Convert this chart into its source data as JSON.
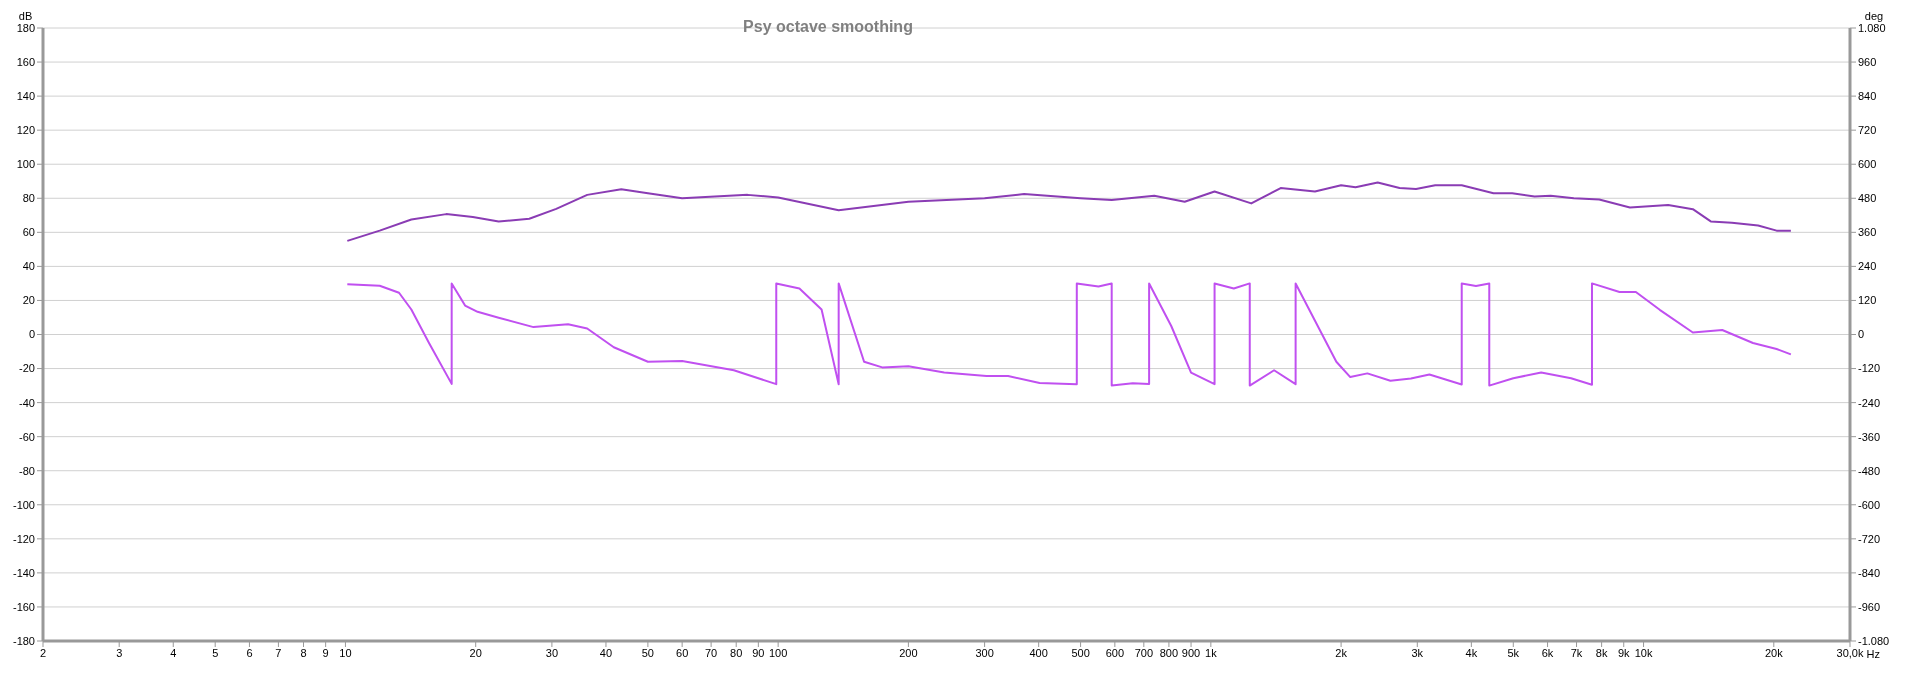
{
  "chart_data": {
    "type": "line",
    "title": "Psy octave smoothing",
    "xlabel": "Hz",
    "ylabel": "dB",
    "y2label": "deg",
    "log": "x",
    "grid": true,
    "marker": "none",
    "line_style": "solid",
    "xlim": [
      2,
      30000
    ],
    "xticks": [
      2,
      3,
      4,
      5,
      6,
      7,
      8,
      9,
      10,
      20,
      30,
      40,
      50,
      60,
      70,
      80,
      90,
      100,
      200,
      300,
      400,
      500,
      600,
      700,
      800,
      900,
      {
        "value": 1000,
        "label": "1k"
      },
      {
        "value": 2000,
        "label": "2k"
      },
      {
        "value": 3000,
        "label": "3k"
      },
      {
        "value": 4000,
        "label": "4k"
      },
      {
        "value": 5000,
        "label": "5k"
      },
      {
        "value": 6000,
        "label": "6k"
      },
      {
        "value": 7000,
        "label": "7k"
      },
      {
        "value": 8000,
        "label": "8k"
      },
      {
        "value": 9000,
        "label": "9k"
      },
      {
        "value": 10000,
        "label": "10k"
      },
      {
        "value": 20000,
        "label": "20k"
      },
      {
        "value": 30000,
        "label": "30,0k"
      }
    ],
    "ylim": [
      -180,
      180
    ],
    "yticks": [
      -180,
      -160,
      -140,
      -120,
      -100,
      -80,
      -60,
      -40,
      -20,
      0,
      20,
      40,
      60,
      80,
      100,
      120,
      140,
      160,
      180
    ],
    "y2lim": [
      -1080,
      1080
    ],
    "y2ticks": [
      {
        "value": -1080,
        "label": "-1.080"
      },
      -960,
      -840,
      -720,
      -600,
      -480,
      -360,
      -240,
      -120,
      0,
      120,
      240,
      360,
      480,
      600,
      720,
      840,
      960,
      {
        "value": 1080,
        "label": "1.080"
      }
    ],
    "series": [
      {
        "color": "#8a3cb4",
        "x": [
          10.1,
          12,
          14.2,
          17.1,
          19.7,
          22.6,
          26.6,
          30.7,
          36.2,
          43.4,
          50,
          60,
          85,
          100,
          138,
          200,
          300,
          370,
          500,
          590,
          740,
          870,
          1020,
          1240,
          1450,
          1740,
          2000,
          2160,
          2430,
          2730,
          2980,
          3300,
          3800,
          4500,
          4970,
          5600,
          6100,
          6900,
          7900,
          9300,
          11400,
          13000,
          14300,
          16000,
          18400,
          20300,
          21900
        ],
        "values": [
          55,
          61,
          67.5,
          70.7,
          69,
          66.3,
          68,
          73.8,
          82,
          85.3,
          83,
          80,
          82,
          80.5,
          73,
          78,
          80,
          82.5,
          80,
          79,
          81.5,
          78,
          84,
          77,
          86,
          84,
          87.7,
          86.5,
          89.3,
          86,
          85.5,
          87.7,
          87.7,
          83,
          83,
          81,
          81.5,
          80,
          79.3,
          74.6,
          76,
          73.6,
          66.4,
          65.6,
          64,
          61,
          61
        ]
      },
      {
        "color": "#c050f0",
        "axis": "y2",
        "x": [
          10.1,
          12,
          13.3,
          14.2,
          15.6,
          17.6,
          17.6,
          18.9,
          20.2,
          22.6,
          27.2,
          32.7,
          36.2,
          41.7,
          50,
          60,
          79,
          99,
          99,
          112,
          126,
          138,
          138,
          158,
          174,
          200,
          242,
          303,
          340,
          402,
          490,
          490,
          550,
          590,
          590,
          660,
          720,
          720,
          810,
          900,
          1020,
          1020,
          1130,
          1230,
          1230,
          1400,
          1570,
          1570,
          1950,
          2100,
          2300,
          2600,
          2900,
          3200,
          3800,
          3800,
          4100,
          4400,
          4400,
          5000,
          5800,
          6800,
          7600,
          7600,
          8800,
          9600,
          10900,
          13000,
          15200,
          17900,
          20300,
          21900
        ],
        "values": [
          177,
          172,
          147,
          88,
          -30,
          -174,
          180,
          102,
          80,
          59,
          26,
          36,
          21,
          -45,
          -96,
          -93,
          -126,
          -175,
          180,
          162,
          88,
          -175,
          180,
          -96,
          -116,
          -112,
          -134,
          -146,
          -146,
          -171,
          -175,
          180,
          169,
          180,
          -180,
          -172,
          -174,
          180,
          30,
          -134,
          -175,
          180,
          162,
          180,
          -180,
          -126,
          -175,
          180,
          -96,
          -150,
          -137,
          -163,
          -155,
          -141,
          -176,
          180,
          171,
          180,
          -180,
          -154,
          -134,
          -154,
          -177,
          180,
          150,
          150,
          87,
          7,
          16,
          -30,
          -51,
          -70
        ]
      }
    ]
  }
}
